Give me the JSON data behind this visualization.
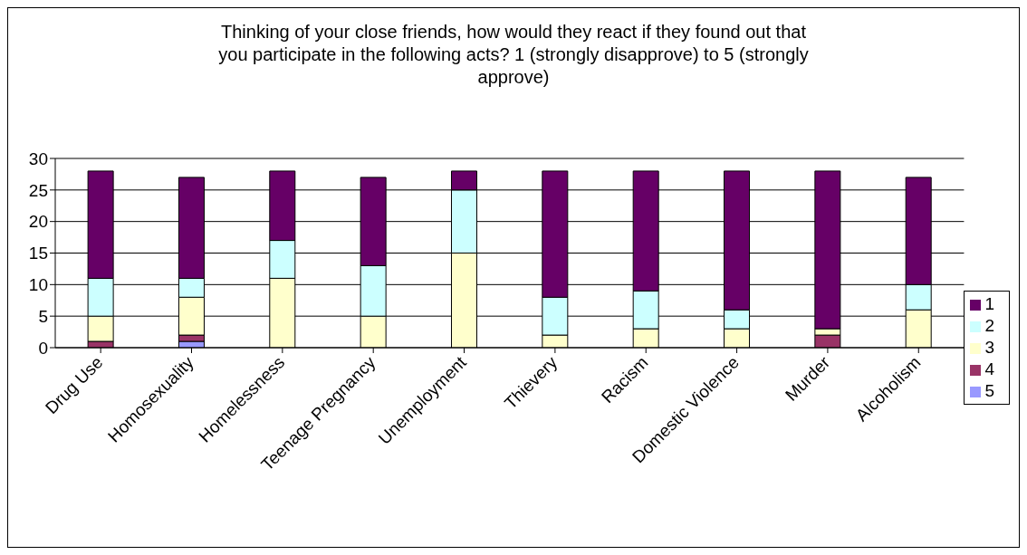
{
  "chart_data": {
    "type": "bar",
    "title": "Thinking of your close friends, how would they react if they found out that you participate in the following acts? 1 (strongly disapprove) to 5 (strongly approve)",
    "categories": [
      "Drug Use",
      "Homosexuality",
      "Homelessness",
      "Teenage Pregnancy",
      "Unemployment",
      "Thievery",
      "Racism",
      "Domestic Violence",
      "Murder",
      "Alcoholism"
    ],
    "stacked": true,
    "series": [
      {
        "name": "5",
        "color": "#9999ff",
        "values": [
          0,
          1,
          0,
          0,
          0,
          0,
          0,
          0,
          0,
          0
        ]
      },
      {
        "name": "4",
        "color": "#993366",
        "values": [
          1,
          1,
          0,
          0,
          0,
          0,
          0,
          0,
          2,
          0
        ]
      },
      {
        "name": "3",
        "color": "#ffffcc",
        "values": [
          4,
          6,
          11,
          5,
          15,
          2,
          3,
          3,
          1,
          6
        ]
      },
      {
        "name": "2",
        "color": "#ccffff",
        "values": [
          6,
          3,
          6,
          8,
          10,
          6,
          6,
          3,
          0,
          4
        ]
      },
      {
        "name": "1",
        "color": "#660066",
        "values": [
          17,
          16,
          11,
          14,
          3,
          20,
          19,
          22,
          25,
          17
        ]
      }
    ],
    "ylim": [
      0,
      30
    ],
    "yticks": [
      0,
      5,
      10,
      15,
      20,
      25,
      30
    ],
    "grid": "y",
    "legend": "right"
  }
}
